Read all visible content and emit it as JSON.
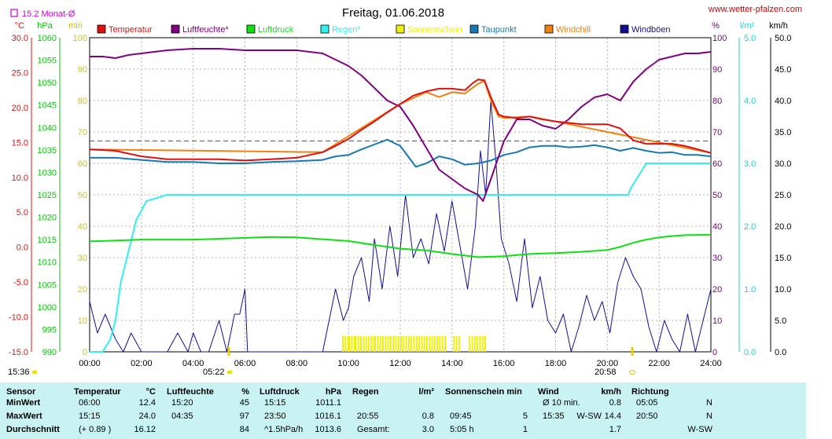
{
  "title": "Freitag, 01.06.2018",
  "website": "www.wetter-pfalzen.com",
  "month_avg_label": "15.2 Monat-Ø",
  "axis_units": {
    "temp": "°C",
    "pressure": "hPa",
    "sun": "min",
    "humidity": "%",
    "rain": "l/m²",
    "wind": "km/h"
  },
  "sunrise_time": "05:22",
  "sunset_time": "20:58",
  "left_time": "15:36",
  "legend": [
    {
      "label": "Temperatur",
      "color": "#e01010"
    },
    {
      "label": "Luftfeuchte*",
      "color": "#800080"
    },
    {
      "label": "Luftdruck",
      "color": "#10e010"
    },
    {
      "label": "Regen*",
      "color": "#30f0f0"
    },
    {
      "label": "Sonnenschein",
      "color": "#f0f010"
    },
    {
      "label": "Taupunkt",
      "color": "#1878b0"
    },
    {
      "label": "Windchill",
      "color": "#f08010"
    },
    {
      "label": "Windböen",
      "color": "#101090"
    }
  ],
  "chart_data": {
    "type": "line",
    "title": "Freitag, 01.06.2018",
    "x_ticks": [
      "00:00",
      "02:00",
      "04:00",
      "06:00",
      "08:00",
      "10:00",
      "12:00",
      "14:00",
      "16:00",
      "18:00",
      "20:00",
      "22:00",
      "24:00"
    ],
    "xlim": [
      0,
      24
    ],
    "axes": {
      "temp": {
        "range": [
          -15,
          30
        ],
        "ticks": [
          "30.0",
          "25.0",
          "20.0",
          "15.0",
          "10.0",
          "5.0",
          "0.0",
          "-5.0",
          "-10.0",
          "-15.0"
        ]
      },
      "pressure": {
        "range": [
          990,
          1060
        ],
        "ticks": [
          "1060",
          "1055",
          "1050",
          "1045",
          "1040",
          "1035",
          "1030",
          "1025",
          "1020",
          "1015",
          "1010",
          "1005",
          "1000",
          "995",
          "990"
        ]
      },
      "sun": {
        "range": [
          0,
          100
        ],
        "ticks": [
          "100",
          "90",
          "80",
          "70",
          "60",
          "50",
          "40",
          "30",
          "20",
          "10",
          "0"
        ]
      },
      "humidity": {
        "range": [
          0,
          100
        ],
        "ticks": [
          "100",
          "90",
          "80",
          "70",
          "60",
          "50",
          "40",
          "30",
          "20",
          "10",
          "0"
        ]
      },
      "rain": {
        "range": [
          0,
          5
        ],
        "ticks": [
          "5.0",
          "4.0",
          "3.0",
          "2.0",
          "1.0",
          "0.0"
        ]
      },
      "wind": {
        "range": [
          0,
          50
        ],
        "ticks": [
          "50.0",
          "45.0",
          "40.0",
          "35.0",
          "30.0",
          "25.0",
          "20.0",
          "15.0",
          "10.0",
          "5.0",
          "0.0"
        ]
      }
    },
    "month_avg_temp": 15.2,
    "grid": true,
    "series": [
      {
        "name": "Temperatur",
        "axis": "temp",
        "color": "#e01010",
        "x": [
          0,
          1,
          2,
          3,
          4,
          5,
          6,
          7,
          8,
          9,
          9.5,
          10,
          10.5,
          11,
          11.5,
          12,
          12.5,
          13,
          13.5,
          14,
          14.5,
          14.8,
          15,
          15.25,
          15.5,
          15.8,
          16,
          16.5,
          17,
          17.5,
          18,
          18.5,
          19,
          19.5,
          20,
          20.5,
          21,
          21.5,
          22,
          22.5,
          23,
          23.5,
          24
        ],
        "y": [
          14,
          13.8,
          13,
          12.6,
          12.6,
          12.6,
          12.4,
          12.6,
          12.8,
          13.6,
          14.5,
          15.5,
          16.8,
          18,
          19.3,
          20.5,
          21.7,
          22.3,
          22.7,
          22.7,
          22.5,
          23.5,
          24,
          23.9,
          21.5,
          19,
          18.7,
          18.5,
          18.7,
          18.3,
          18,
          17.8,
          17.6,
          17.6,
          17.6,
          17,
          15.3,
          14.8,
          14.8,
          14.8,
          14.5,
          14,
          13.5
        ]
      },
      {
        "name": "Luftfeuchte*",
        "axis": "humidity",
        "color": "#800080",
        "x": [
          0,
          0.5,
          1,
          1.5,
          2,
          3,
          4,
          5,
          6,
          7,
          8,
          9,
          9.5,
          10,
          10.5,
          11,
          11.5,
          12,
          12.5,
          13,
          13.5,
          14,
          14.5,
          15,
          15.2,
          15.5,
          16,
          16.5,
          17,
          17.5,
          18,
          18.5,
          19,
          19.5,
          20,
          20.5,
          21,
          21.5,
          22,
          22.5,
          23,
          23.5,
          24
        ],
        "y": [
          94,
          94,
          93.5,
          94.5,
          95,
          96,
          96.5,
          96.5,
          96,
          96,
          96,
          95,
          93,
          91,
          88,
          84,
          80,
          78,
          72,
          65,
          58,
          55,
          52,
          50,
          48,
          55,
          67,
          74,
          74,
          72,
          71,
          74,
          78,
          81,
          82,
          80,
          86,
          90,
          93,
          94,
          95,
          95,
          95.5
        ]
      },
      {
        "name": "Luftdruck",
        "axis": "pressure",
        "color": "#10e010",
        "x": [
          0,
          2,
          4,
          6,
          7,
          8,
          9,
          10,
          11,
          12,
          13,
          14,
          15,
          16,
          17,
          18,
          19,
          20,
          20.5,
          21,
          21.5,
          22,
          22.5,
          23,
          24
        ],
        "y": [
          1014.6,
          1015.0,
          1015.0,
          1015.4,
          1015.6,
          1015.5,
          1015.1,
          1014.7,
          1013.8,
          1013.0,
          1012.6,
          1011.8,
          1011.1,
          1011.3,
          1011.8,
          1012.0,
          1012.3,
          1012.7,
          1013.4,
          1014.3,
          1015.0,
          1015.5,
          1015.8,
          1016.0,
          1016.1
        ]
      },
      {
        "name": "Regen*",
        "axis": "rain",
        "color": "#30f0f0",
        "x": [
          0,
          0.5,
          0.8,
          1,
          1.2,
          1.5,
          1.8,
          2.2,
          3,
          4,
          8,
          12,
          16,
          20,
          20.8,
          20.9,
          21.2,
          21.5,
          22,
          22.3,
          22.6,
          23,
          24
        ],
        "y": [
          0,
          0,
          0.2,
          0.5,
          1.1,
          1.6,
          2.1,
          2.4,
          2.5,
          2.5,
          2.5,
          2.5,
          2.5,
          2.5,
          2.5,
          2.6,
          2.8,
          3.0,
          3.0,
          3.0,
          3.0,
          3.0,
          3.0
        ]
      },
      {
        "name": "Taupunkt",
        "axis": "temp",
        "color": "#1878b0",
        "x": [
          0,
          1,
          2,
          3,
          4,
          5,
          6,
          7,
          8,
          9,
          9.5,
          10,
          10.5,
          11,
          11.5,
          12,
          12.3,
          12.6,
          13,
          13.5,
          14,
          14.5,
          15,
          15.5,
          16,
          16.5,
          17,
          17.5,
          18,
          18.5,
          19,
          19.5,
          20,
          20.5,
          21,
          21.5,
          22,
          22.5,
          23,
          23.5,
          24
        ],
        "y": [
          12.8,
          12.8,
          12.5,
          12.2,
          12.2,
          12.0,
          12.0,
          12.2,
          12.3,
          12.5,
          13,
          13.2,
          14,
          14.7,
          15.4,
          14.5,
          13,
          11.5,
          12,
          13,
          12.6,
          11.8,
          12.0,
          12.4,
          13.2,
          13.6,
          14.3,
          14.5,
          14.5,
          14.3,
          14.4,
          14.6,
          14.3,
          13.8,
          14.2,
          13.8,
          13.5,
          13.6,
          13.2,
          13.2,
          13.0
        ]
      },
      {
        "name": "Windchill",
        "axis": "temp",
        "color": "#f08010",
        "x": [
          0,
          9,
          12,
          13,
          13.5,
          14,
          14.5,
          15,
          15.25,
          15.5,
          15.8,
          16,
          17,
          18,
          24
        ],
        "y": [
          14,
          13.6,
          20.5,
          22.2,
          21.5,
          22.2,
          22.0,
          23.4,
          23.8,
          21.0,
          18.7,
          18.5,
          18.7,
          18,
          13.5
        ]
      },
      {
        "name": "Windböen",
        "axis": "wind",
        "color": "#101090",
        "x": [
          0,
          0.3,
          0.6,
          1,
          1.3,
          1.6,
          2,
          2.3,
          2.6,
          3,
          3.4,
          3.8,
          4,
          4.3,
          4.6,
          5,
          5.3,
          5.6,
          5.8,
          6,
          6.1,
          6.5,
          7,
          8,
          9,
          9.5,
          9.8,
          10,
          10.2,
          10.5,
          10.8,
          11,
          11.3,
          11.6,
          11.9,
          12.2,
          12.5,
          12.8,
          13.1,
          13.4,
          13.7,
          14,
          14.3,
          14.6,
          14.9,
          15.1,
          15.3,
          15.5,
          15.7,
          15.9,
          16.2,
          16.5,
          16.8,
          17.1,
          17.4,
          17.7,
          18,
          18.3,
          18.6,
          18.9,
          19.2,
          19.5,
          19.8,
          20.1,
          20.4,
          20.7,
          21,
          21.3,
          21.6,
          21.9,
          22.2,
          22.5,
          22.8,
          23.1,
          23.4,
          23.7,
          24
        ],
        "y": [
          8,
          3,
          6,
          2,
          0,
          3,
          0,
          0,
          0,
          0,
          3,
          0,
          3,
          0,
          0,
          5,
          0,
          6,
          6,
          10,
          0,
          0,
          0,
          0,
          0,
          10,
          5,
          7,
          12,
          15,
          8,
          18,
          10,
          20,
          12,
          25,
          15,
          18,
          14,
          22,
          16,
          24,
          17,
          10,
          20,
          32,
          25,
          40,
          30,
          18,
          14,
          8,
          18,
          7,
          12,
          5,
          3,
          6,
          0,
          4,
          9,
          5,
          8,
          3,
          11,
          15,
          12,
          10,
          4,
          0,
          5,
          2,
          0,
          6,
          0,
          5,
          10
        ]
      }
    ],
    "sunshine": {
      "color": "#f0f010",
      "axis": "sun",
      "intervals": [
        [
          9.75,
          10.0
        ],
        [
          10.0,
          10.25
        ],
        [
          10.25,
          11.0
        ],
        [
          11.0,
          11.9
        ],
        [
          11.9,
          12.9
        ],
        [
          12.9,
          13.8
        ],
        [
          14.05,
          14.3
        ],
        [
          14.65,
          15.3
        ]
      ]
    }
  },
  "stats": {
    "headers": [
      {
        "label": "Sensor",
        "unit": ""
      },
      {
        "label": "Temperatur",
        "unit": "°C"
      },
      {
        "label": "Luftfeuchte",
        "unit": "%"
      },
      {
        "label": "Luftdruck",
        "unit": "hPa"
      },
      {
        "label": "Regen",
        "unit": "l/m²"
      },
      {
        "label": "Sonnenschein min",
        "unit": ""
      },
      {
        "label": "Wind",
        "unit": "km/h"
      },
      {
        "label": "Richtung",
        "unit": ""
      }
    ],
    "row_labels": [
      "MinWert",
      "MaxWert",
      "Durchschnitt"
    ],
    "temp": [
      [
        "06:00",
        "12.4"
      ],
      [
        "15:15",
        "24.0"
      ],
      [
        "(+ 0.89 )",
        "16.12"
      ]
    ],
    "humidity": [
      [
        "15:20",
        "45"
      ],
      [
        "04:35",
        "97"
      ],
      [
        "",
        "84"
      ]
    ],
    "pressure": [
      [
        "15:15",
        "1011.1"
      ],
      [
        "23:50",
        "1016.1"
      ],
      [
        "^1.5hPa/h",
        "1013.6"
      ]
    ],
    "rain": [
      [
        "",
        ""
      ],
      [
        "20:55",
        "0.8"
      ],
      [
        "Gesamt:",
        "3.0"
      ]
    ],
    "sun": [
      [
        "",
        ""
      ],
      [
        "09:45",
        "5"
      ],
      [
        "5:05 h",
        "1"
      ]
    ],
    "wind": [
      [
        "Ø 10 min.",
        "",
        "0.8"
      ],
      [
        "15:35",
        "W-SW",
        "14.4"
      ],
      [
        "",
        "",
        "1.7"
      ]
    ],
    "dir": [
      [
        "05:05",
        "N"
      ],
      [
        "20:50",
        "N"
      ],
      [
        "",
        "W-SW"
      ]
    ]
  }
}
